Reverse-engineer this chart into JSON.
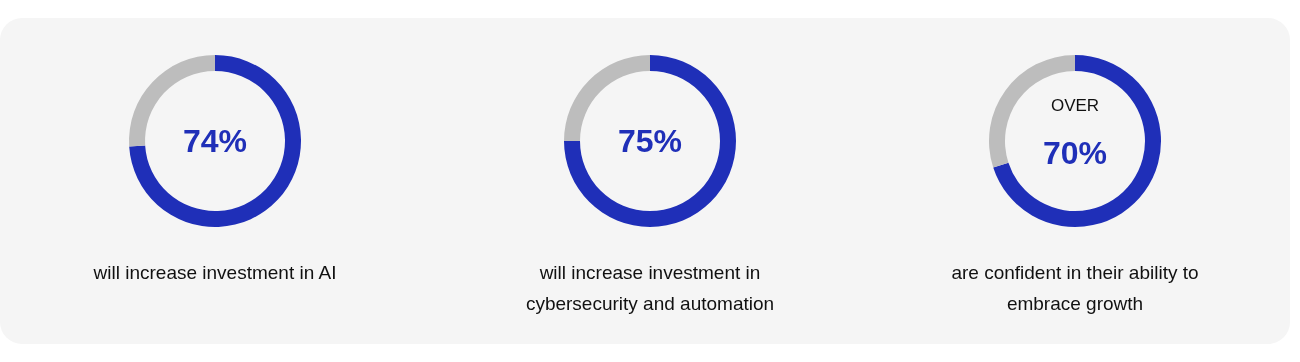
{
  "chart_data": [
    {
      "type": "donut",
      "categories": [
        null,
        null
      ],
      "values": [
        74,
        26
      ],
      "colors": [
        "#1f2fb8",
        "#bdbdbd"
      ],
      "value_labels": [
        "74%",
        null
      ],
      "xlabel": "will increase investment in AI"
    },
    {
      "type": "donut",
      "categories": [
        null,
        null
      ],
      "values": [
        75,
        25
      ],
      "colors": [
        "#1f2fb8",
        "#bdbdbd"
      ],
      "value_labels": [
        "75%",
        null
      ],
      "xlabel": "will increase investment in cybersecurity and automation"
    },
    {
      "type": "donut",
      "categories": [
        null,
        null
      ],
      "values": [
        70,
        30
      ],
      "colors": [
        "#1f2fb8",
        "#bdbdbd"
      ],
      "value_labels": [
        "70%",
        null
      ],
      "annotations": [
        "OVER"
      ],
      "xlabel": "are confident in their ability to embrace growth"
    }
  ]
}
